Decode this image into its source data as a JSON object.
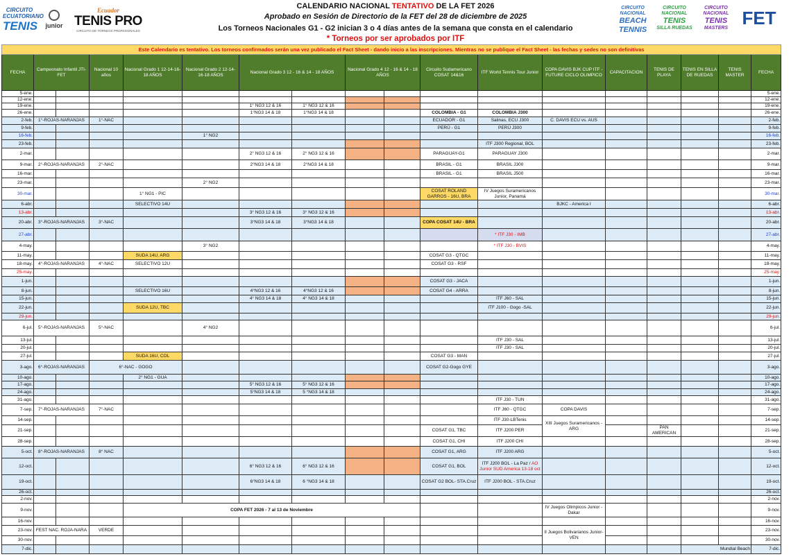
{
  "logos": {
    "left": [
      "CIRCUITO ECUATORIANO DE TENIS",
      "junior",
      "Ecuador TENIS PRO CIRCUITO DE TORNEOS PROFESIONALES"
    ],
    "right": [
      "CIRCUITO NACIONAL BEACH TENNIS",
      "CIRCUITO NACIONAL TENIS SILLA RUEDAS",
      "CIRCUITO NACIONAL TENIS MASTERS",
      "FET"
    ]
  },
  "header": {
    "title_a": "CALENDARIO NACIONAL ",
    "title_red": "TENTATIVO",
    "title_b": " DE LA FET 2026",
    "subtitle": "Aprobado en Sesión de Directorio de la FET del 28 de diciembre de 2025",
    "note": "Los Torneos Nacionales G1 - G2 inician 3 o 4 días antes de la semana que consta en el calendario",
    "itf_note": "* Torneos por ser aprobados por ITF"
  },
  "banner": "Este Calendario es tentativo.  Los torneos confirmados serán una vez publicado el Fact Sheet - dando inicio a las inscripciones.  Mientras no se publique el Fact Sheet - las fechas y sedes no son definitivas",
  "colors": {
    "header_green": "#4f7d2b",
    "banner_yellow": "#ffd966",
    "row_blue": "#ddebf7",
    "ng4_orange": "#f4b183",
    "highlight_yellow": "#ffd966",
    "red_text": "#e01010",
    "blue_text": "#1f3fd0"
  },
  "columns": [
    {
      "key": "fecha",
      "label": "FECHA"
    },
    {
      "key": "inf",
      "label": "Campeonato Infantil JTI-FET",
      "span": 2
    },
    {
      "key": "nac10",
      "label": "Nacional 10 años"
    },
    {
      "key": "ng1",
      "label": "Nacional Grado 1 12-14-16-18 AÑOS"
    },
    {
      "key": "ng2",
      "label": "Nacional Grado 2 12-14-16-18 AÑOS"
    },
    {
      "key": "ng3",
      "label": "Nacional Grado 3 12 - 16 & 14 - 18 AÑOS",
      "span": 2
    },
    {
      "key": "ng4",
      "label": "Nacional Grado 4 12 - 16 & 14 - 18 AÑOS",
      "span": 2
    },
    {
      "key": "cosat",
      "label": "Circuito Sudamericano COSAT 14&16"
    },
    {
      "key": "itf",
      "label": "ITF World Tennis Tour Junior"
    },
    {
      "key": "davis",
      "label": "COPA DAVIS BJK CUP ITF - FUTURE CICLO OLIMPICO"
    },
    {
      "key": "cap",
      "label": "CAPACITACION"
    },
    {
      "key": "playa",
      "label": "TENIS DE PLAYA"
    },
    {
      "key": "silla",
      "label": "TENIS EN SILLA DE RUEDAS"
    },
    {
      "key": "master",
      "label": "TENIS MASTER"
    },
    {
      "key": "fecha2",
      "label": "FECHA"
    }
  ],
  "rows": [
    {
      "date": "5-ene.",
      "cells": {}
    },
    {
      "date": "12-ene.",
      "cells": {
        "ng4a": {
          "bg": "orange"
        },
        "ng4b": {
          "bg": "orange"
        }
      }
    },
    {
      "date": "19-ene.",
      "cells": {
        "ng3a": "1° NG3 12 & 16",
        "ng3b": "1° NG3 12 & 16",
        "ng4a": {
          "bg": "orange"
        },
        "ng4b": {
          "bg": "orange"
        }
      }
    },
    {
      "date": "26-ene.",
      "cells": {
        "ng3a": "1°NG3 14 & 18",
        "ng3b": "1°NG3 14 & 18",
        "cosat": {
          "t": "COLOMBIA - G1",
          "bold": true
        },
        "itf": {
          "t": "COLOMBIA J300",
          "bold": true
        }
      }
    },
    {
      "date": "2-feb.",
      "blue": true,
      "cells": {
        "inf_a": {
          "t": "1°-ROJAS-NARANJAS",
          "span": 2
        },
        "nac10": "1°-NAC",
        "cosat": "ECUADOR - G1",
        "itf": "Salinas, ECU J300",
        "davis": "C. DAVIS ECU vs. AUS"
      }
    },
    {
      "date": "9-feb.",
      "blue": true,
      "cells": {
        "cosat": "PERÚ - G1",
        "itf": "PERÚ J300"
      }
    },
    {
      "date": "16-feb.",
      "blue": true,
      "date_color": "blue",
      "cells": {
        "ng2": "1° NG2"
      }
    },
    {
      "date": "23-feb.",
      "blue": true,
      "cells": {
        "ng4a": {
          "bg": "orange"
        },
        "ng4b": {
          "bg": "orange"
        },
        "itf": "ITF J300 Regional, BOL"
      }
    },
    {
      "date": "2-mar.",
      "cells": {
        "ng3a": "2° NG3 12 & 16",
        "ng3b": "2° NG3 12 & 16",
        "ng4a": {
          "bg": "orange"
        },
        "ng4b": {
          "bg": "orange"
        },
        "cosat": "PARAGUAY-G1",
        "itf": "PARAGUAY J300"
      }
    },
    {
      "date": "9-mar.",
      "cells": {
        "inf_a": {
          "t": "2°-ROJAS-NARANJAS",
          "span": 2
        },
        "nac10": "2°-NAC",
        "ng3a": "2°NG3 14 & 18",
        "ng3b": "2°NG3 14 & 18",
        "cosat": "BRASIL - G1",
        "itf": "BRASIL J300"
      }
    },
    {
      "date": "16-mar.",
      "cells": {
        "cosat": "BRASIL - G1",
        "itf": "BRASIL J500"
      }
    },
    {
      "date": "23-mar.",
      "cells": {
        "ng2": "2° NG2"
      }
    },
    {
      "date": "30-mar.",
      "date_color": "blue",
      "cells": {
        "ng1": "1° NG1 - PIC",
        "cosat": {
          "t": "COSAT ROLAND GARROS - 16U, BRA",
          "bg": "yellow",
          "wrap": true
        },
        "itf": {
          "t": "IV Juegos Suramericanos Junior, Panamá",
          "wrap": true
        }
      }
    },
    {
      "date": "6-abr.",
      "blue": true,
      "cells": {
        "ng1": "SELECTIVO 14U",
        "ng4a": {
          "bg": "orange"
        },
        "ng4b": {
          "bg": "orange"
        },
        "davis": "BJKC - America I"
      }
    },
    {
      "date": "13-abr.",
      "blue": true,
      "date_color": "red",
      "cells": {
        "ng3a": "3° NG3 12 & 16",
        "ng3b": "3° NG3 12 & 16",
        "ng4a": {
          "bg": "orange"
        },
        "ng4b": {
          "bg": "orange"
        }
      }
    },
    {
      "date": "20-abr.",
      "blue": true,
      "cells": {
        "inf_a": {
          "t": "3°-ROJAS-NARANJAS",
          "span": 2
        },
        "nac10": "3°-NAC",
        "ng3a": "3°NG3 14 & 18",
        "ng3b": "3°NG3 14 & 18",
        "cosat": {
          "t": "COPA COSAT 14U - BRA",
          "bg": "yellow",
          "bold": true
        }
      }
    },
    {
      "date": "27-abr.",
      "blue": true,
      "date_color": "blue",
      "cells": {
        "cosat": {
          "bg": "lav"
        },
        "itf": {
          "t": "* ITF J30 - IMB",
          "color": "red",
          "bg": "lav"
        }
      }
    },
    {
      "date": "4-may.",
      "cells": {
        "ng2": "3° NG2",
        "itf": {
          "t": "* ITF J30  - BVIS",
          "color": "red"
        }
      }
    },
    {
      "date": "11-may.",
      "cells": {
        "ng1": {
          "t": "SUDA 14U, ARG",
          "bg": "yellow"
        },
        "cosat": "COSAT G3 - QTGC"
      }
    },
    {
      "date": "18-may.",
      "cells": {
        "inf_a": {
          "t": "4°-ROJAS-NARANJAS",
          "span": 2
        },
        "nac10": "4°-NAC",
        "ng1": "SELECTIVO 12U",
        "cosat": "COSAT G3 - RSF"
      }
    },
    {
      "date": "25-may.",
      "date_color": "red",
      "cells": {}
    },
    {
      "date": "1-jun.",
      "blue": true,
      "cells": {
        "ng4a": {
          "bg": "orange"
        },
        "ng4b": {
          "bg": "orange"
        },
        "cosat": "COSAT G3 - JACA"
      }
    },
    {
      "date": "8-jun.",
      "blue": true,
      "cells": {
        "ng1": "SELECTIVO 16U",
        "ng3a": "4°NG3 12 & 16",
        "ng3b": "4°NG3 12 & 16",
        "ng4a": {
          "bg": "orange"
        },
        "ng4b": {
          "bg": "orange"
        },
        "cosat": "COSAT G4 - ARRA"
      }
    },
    {
      "date": "15-jun.",
      "blue": true,
      "cells": {
        "ng3a": "4° NG3 14 & 18",
        "ng3b": "4° NG3 14 & 18",
        "itf": "ITF J60 - SAL"
      }
    },
    {
      "date": "22-jun.",
      "blue": true,
      "cells": {
        "ng1": {
          "t": "SUDA 12U, TBC",
          "bg": "yellow"
        },
        "itf": "ITF J100 - Gogo -SAL"
      }
    },
    {
      "date": "29-jun.",
      "blue": true,
      "date_color": "red",
      "cells": {}
    },
    {
      "date": "6-jul.",
      "cells": {
        "inf_a": {
          "t": "5°-ROJAS-NARANJAS",
          "span": 2
        },
        "nac10": "5°-NAC",
        "ng2": "4° NG2"
      }
    },
    {
      "date": "13-jul.",
      "cells": {
        "itf": "ITF J30 - SAL"
      }
    },
    {
      "date": "20-jul.",
      "cells": {
        "itf": "ITF J30  - SAL"
      }
    },
    {
      "date": "27-jul.",
      "cells": {
        "ng1": {
          "t": "SUDA 16U, COL",
          "bg": "yellow"
        },
        "cosat": "COSAT G3 - MAN"
      }
    },
    {
      "date": "3-ago.",
      "blue": true,
      "cells": {
        "inf_a": {
          "t": "6°-ROJAS-NARANJAS",
          "span": 2
        },
        "nac10": {
          "t": "6°-NAC - GOGO",
          "span": 2
        },
        "cosat": "COSAT G2-Gogo GYE"
      }
    },
    {
      "date": "10-ago.",
      "blue": true,
      "cells": {
        "ng1": "2° NG1 - GUA",
        "ng4a": {
          "bg": "orange"
        },
        "ng4b": {
          "bg": "orange"
        }
      }
    },
    {
      "date": "17-ago.",
      "blue": true,
      "cells": {
        "ng3a": "5° NG3 12 & 16",
        "ng3b": "5° NG3 12 & 16",
        "ng4a": {
          "bg": "orange"
        },
        "ng4b": {
          "bg": "orange"
        }
      }
    },
    {
      "date": "24-ago.",
      "blue": true,
      "cells": {
        "ng3a": "5°NG3 14 & 18",
        "ng3b": "5 °NG3 14 & 18"
      }
    },
    {
      "date": "31-ago.",
      "cells": {
        "itf": "ITF J30 - TUN"
      }
    },
    {
      "date": "7-sep.",
      "cells": {
        "inf_a": {
          "t": "7°-ROJAS-NARANJAS",
          "span": 2
        },
        "nac10": "7°-NAC",
        "itf": "ITF J60 - QTGC",
        "davis": "COPA DAVIS"
      }
    },
    {
      "date": "14-sep.",
      "cells": {
        "itf": "ITF J30-LBTenis",
        "davis": {
          "t": "XIII Juegos Suramericanos - ARG",
          "rows": 2,
          "wrap": true
        }
      }
    },
    {
      "date": "21-sep.",
      "cells": {
        "cosat": "COSAT G1, TBC",
        "itf": "ITF J200 PER",
        "playa": {
          "t": "PAN AMERICAN",
          "wrap": true
        }
      }
    },
    {
      "date": "28-sep.",
      "cells": {
        "cosat": "COSAT G1, CHI",
        "itf": "ITF J200 CHI"
      }
    },
    {
      "date": "5-oct.",
      "blue": true,
      "cells": {
        "inf_a": {
          "t": "8°-ROJAS-NARANJAS",
          "span": 2
        },
        "nac10": "8° NAC",
        "ng4a": {
          "bg": "orange"
        },
        "ng4b": {
          "bg": "orange"
        },
        "cosat": "COSAT G1, ARG",
        "itf": "ITF J200 ARG"
      }
    },
    {
      "date": "12-oct.",
      "blue": true,
      "cells": {
        "ng3a": "6° NG3 12 & 16",
        "ng3b": "6° NG3 12 & 16",
        "ng4a": {
          "bg": "orange"
        },
        "ng4b": {
          "bg": "orange"
        },
        "cosat": "COSAT G1, BOL",
        "itf": {
          "t": "ITF J200 BOL - La Paz / ",
          "t_red": "AO Junior SUD America 13-18 oct",
          "wrap": true
        }
      }
    },
    {
      "date": "19-oct.",
      "blue": true,
      "cells": {
        "ng3a": "6°NG3 14 & 18",
        "ng3b": "6 °NG3 14 & 18",
        "cosat": {
          "t": "COSAT G2 BOL- STA.Cruz",
          "wrap": true
        },
        "itf": "ITF J200 BOL - STA.Cruz"
      }
    },
    {
      "date": "26-oct.",
      "blue": true,
      "cells": {}
    },
    {
      "date": "2-nov.",
      "cells": {}
    },
    {
      "date": "9-nov.",
      "cells": {
        "ng1": {
          "t": "COPA FET 2026 - 7 al 13 de Noviembre",
          "span": 6,
          "bold": true
        },
        "davis": {
          "t": "IV Juegos Olimpicos Junior - Dakar",
          "wrap": true
        }
      }
    },
    {
      "date": "16-nov.",
      "cells": {}
    },
    {
      "date": "23-nov.",
      "cells": {
        "inf_a": {
          "t": "FEST NAC. ROJA-NARA",
          "span": 2
        },
        "nac10": "VERDE",
        "davis": {
          "t": "II Juegos Bolivarianos Junior- VEN",
          "rows": 2,
          "wrap": true
        }
      }
    },
    {
      "date": "30-nov.",
      "cells": {}
    },
    {
      "date": "7-dic.",
      "blue": true,
      "cells": {
        "silla": {
          "t": "Mundial  Beach",
          "span": 2,
          "right": true
        }
      }
    }
  ]
}
